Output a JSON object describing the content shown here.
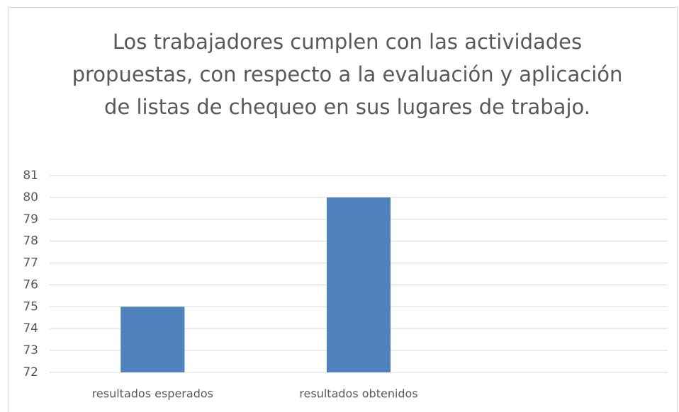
{
  "chart_data": {
    "type": "bar",
    "title": "Los trabajadores cumplen con las actividades propuestas, con respecto a la evaluación y aplicación de listas de chequeo en sus lugares de trabajo.",
    "categories": [
      "resultados esperados",
      "resultados obtenidos",
      null
    ],
    "values": [
      75,
      80,
      null
    ],
    "color": "#4f81bd",
    "ylim": [
      72,
      81
    ],
    "yticks": [
      72,
      73,
      74,
      75,
      76,
      77,
      78,
      79,
      80,
      81
    ],
    "grid": true
  }
}
